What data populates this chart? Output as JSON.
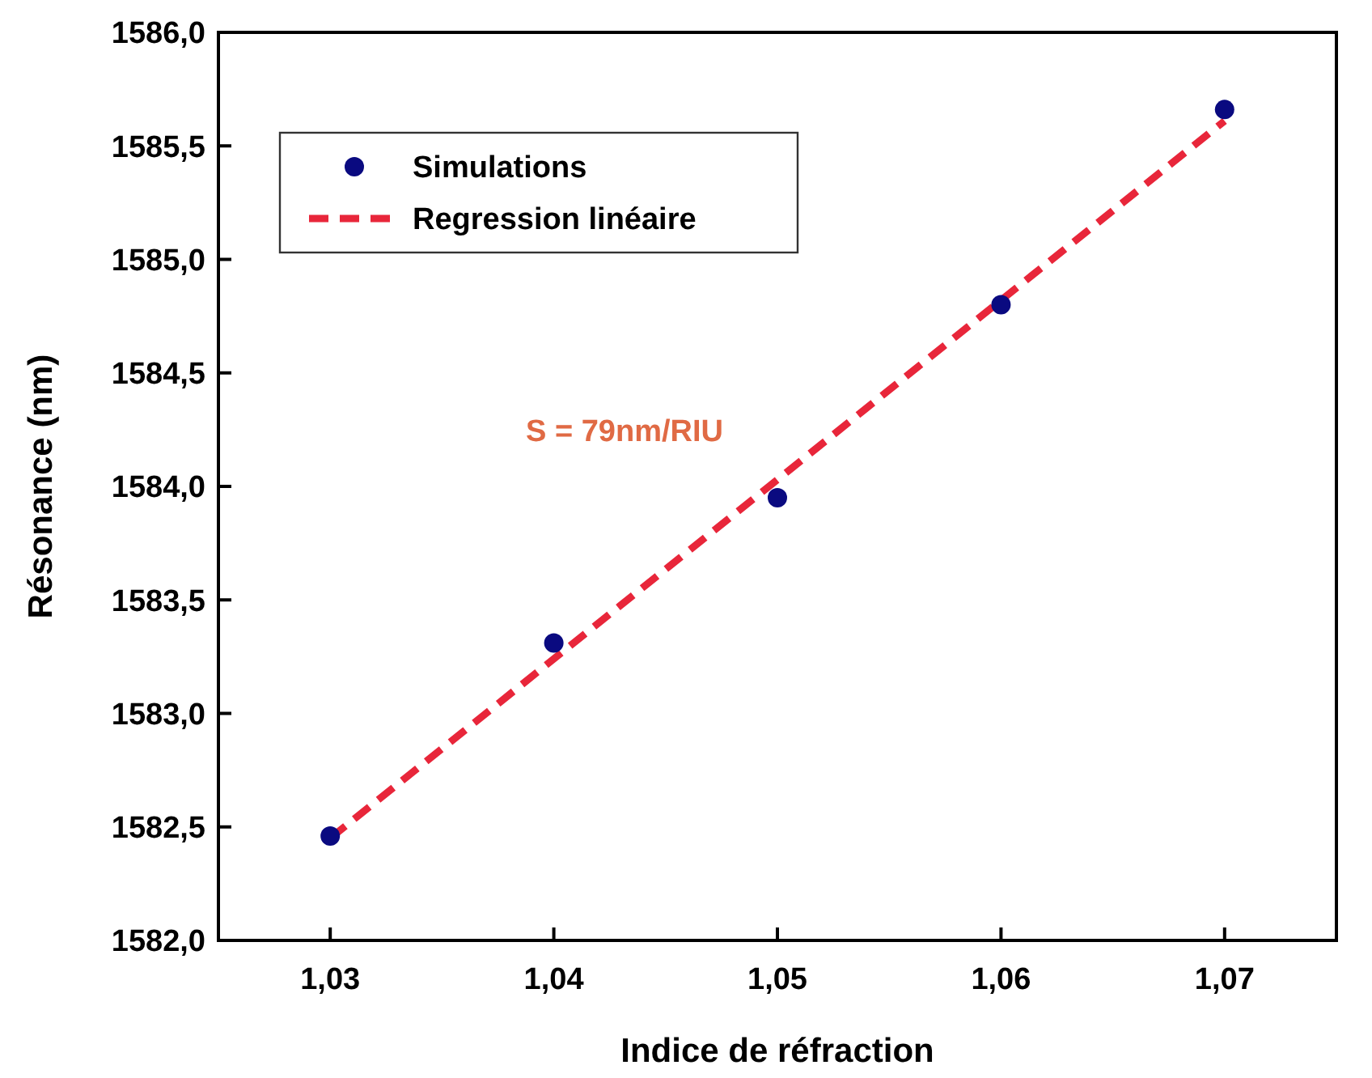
{
  "chart_data": {
    "type": "scatter",
    "xlabel": "Indice de réfraction",
    "ylabel": "Résonance (nm)",
    "xlim": [
      1.025,
      1.075
    ],
    "xticks": [
      {
        "value": 1.03,
        "label": "1,03"
      },
      {
        "value": 1.04,
        "label": "1,04"
      },
      {
        "value": 1.05,
        "label": "1,05"
      },
      {
        "value": 1.06,
        "label": "1,06"
      },
      {
        "value": 1.07,
        "label": "1,07"
      }
    ],
    "ylim": [
      1582,
      1586
    ],
    "yticks": [
      {
        "value": 1582,
        "label": "1582,0"
      },
      {
        "value": 1582.5,
        "label": "1582,5"
      },
      {
        "value": 1583,
        "label": "1583,0"
      },
      {
        "value": 1583.5,
        "label": "1583,5"
      },
      {
        "value": 1584,
        "label": "1584,0"
      },
      {
        "value": 1584.5,
        "label": "1584,5"
      },
      {
        "value": 1585,
        "label": "1585,0"
      },
      {
        "value": 1585.5,
        "label": "1585,5"
      },
      {
        "value": 1586,
        "label": "1586,0"
      }
    ],
    "series": [
      {
        "name": "Simulations",
        "color": "#0a0a80",
        "marker": "circle",
        "x": [
          1.03,
          1.04,
          1.05,
          1.06,
          1.07
        ],
        "values": [
          1582.46,
          1583.31,
          1583.95,
          1584.8,
          1585.66
        ]
      },
      {
        "name": "Regression linéaire",
        "type": "line",
        "color": "#e8263a",
        "line_style": "dashed",
        "x": [
          1.03,
          1.07
        ],
        "values": [
          1582.45,
          1585.61
        ]
      }
    ],
    "annotations": [
      "S = 79nm/RIU"
    ],
    "grid": false,
    "legend": "top left"
  }
}
